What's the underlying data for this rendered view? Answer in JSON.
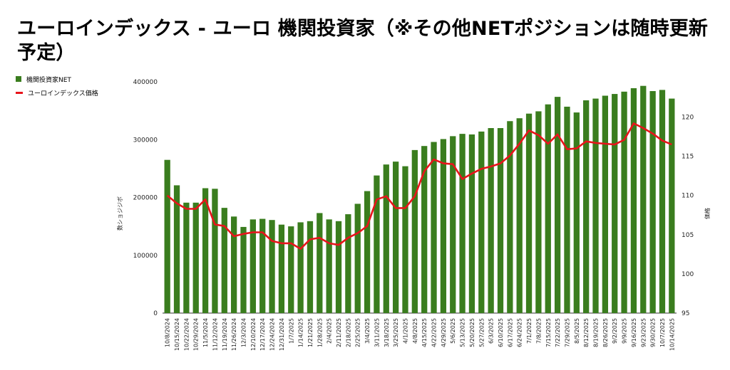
{
  "title": "ユーロインデックス - ユーロ 機関投資家（※その他NETポジションは随時更新予定）",
  "chart_data": {
    "type": "bar+line",
    "x": [
      "10/8/2024",
      "10/15/2024",
      "10/22/2024",
      "10/29/2024",
      "11/5/2024",
      "11/12/2024",
      "11/19/2024",
      "11/26/2024",
      "12/3/2024",
      "12/10/2024",
      "12/17/2024",
      "12/24/2024",
      "12/31/2024",
      "1/7/2025",
      "1/14/2025",
      "1/21/2025",
      "1/28/2025",
      "2/4/2025",
      "2/11/2025",
      "2/18/2025",
      "2/25/2025",
      "3/4/2025",
      "3/11/2025",
      "3/18/2025",
      "3/25/2025",
      "4/1/2025",
      "4/8/2025",
      "4/15/2025",
      "4/22/2025",
      "4/29/2025",
      "5/6/2025",
      "5/13/2025",
      "5/20/2025",
      "5/27/2025",
      "6/3/2025",
      "6/10/2025",
      "6/17/2025",
      "6/24/2025",
      "7/1/2025",
      "7/8/2025",
      "7/15/2025",
      "7/22/2025",
      "7/29/2025",
      "8/5/2025",
      "8/12/2025",
      "8/19/2025",
      "8/26/2025",
      "9/2/2025",
      "9/9/2025",
      "9/16/2025",
      "9/23/2025",
      "9/30/2025",
      "10/7/2025",
      "10/14/2025"
    ],
    "series": [
      {
        "name": "機関投資家NET",
        "type": "bar",
        "axis": "left",
        "color": "#3a7d1e",
        "values": [
          265000,
          221000,
          191000,
          191000,
          216000,
          215000,
          182000,
          167000,
          149000,
          162000,
          163000,
          161000,
          153000,
          150000,
          157000,
          159000,
          173000,
          162000,
          159000,
          171000,
          189000,
          211000,
          238000,
          257000,
          262000,
          254000,
          282000,
          289000,
          296000,
          301000,
          306000,
          310000,
          309000,
          314000,
          320000,
          320000,
          332000,
          337000,
          345000,
          349000,
          361000,
          374000,
          357000,
          347000,
          368000,
          371000,
          376000,
          379000,
          383000,
          389000,
          393000,
          384000,
          386000,
          371000
        ]
      },
      {
        "name": "ユーロインデックス価格",
        "type": "line",
        "axis": "right",
        "color": "#e8141b",
        "values": [
          110.0,
          109.0,
          108.3,
          108.3,
          109.5,
          106.3,
          106.1,
          104.8,
          105.1,
          105.3,
          105.3,
          104.2,
          103.9,
          103.9,
          103.2,
          104.4,
          104.6,
          103.9,
          103.7,
          104.6,
          105.2,
          106.1,
          109.5,
          109.9,
          108.4,
          108.4,
          109.9,
          113.1,
          114.6,
          114.1,
          114.0,
          112.1,
          112.8,
          113.4,
          113.7,
          114.1,
          115.1,
          116.6,
          118.3,
          117.7,
          116.6,
          117.8,
          115.9,
          116.0,
          116.9,
          116.7,
          116.6,
          116.5,
          117.1,
          119.2,
          118.6,
          117.9,
          117.0,
          116.5
        ]
      }
    ],
    "left_axis": {
      "label": "数ショジジボ",
      "ticks": [
        "0",
        "100000",
        "200000",
        "300000",
        "400000"
      ],
      "min": 0,
      "max": 400000
    },
    "right_axis": {
      "label": "価格",
      "ticks": [
        "95",
        "100",
        "105",
        "110",
        "115",
        "120"
      ],
      "min": 95,
      "max": 124.5
    },
    "legend_position": "top-left",
    "grid": false
  }
}
